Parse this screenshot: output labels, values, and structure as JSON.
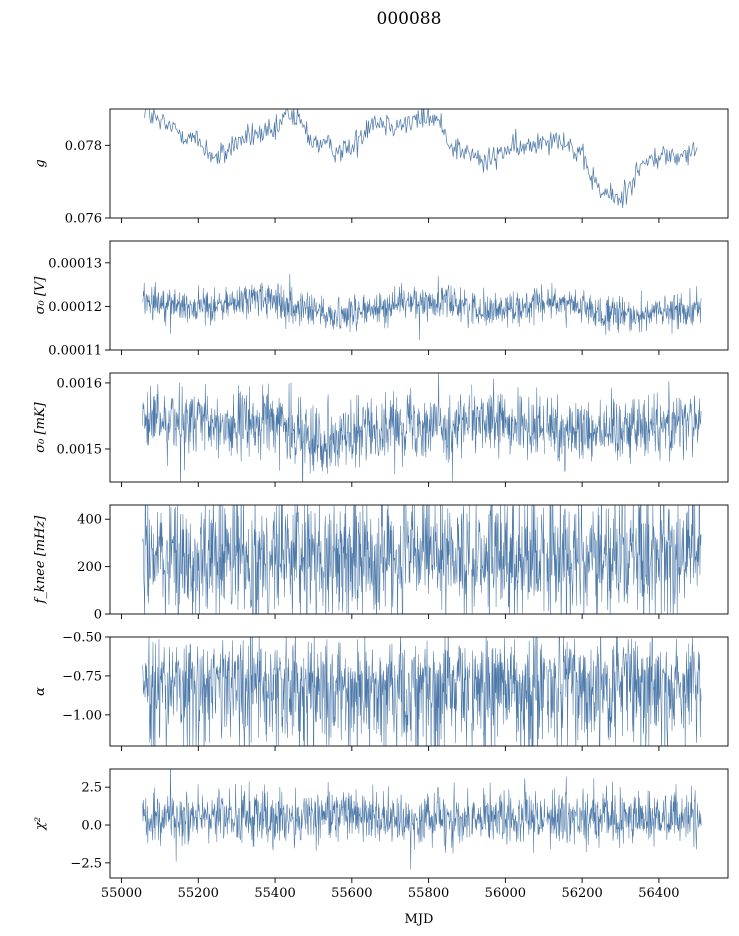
{
  "suptitle": "000088",
  "xlabel": "MJD",
  "colors": {
    "series": "#4c78a8",
    "axes": "#000000",
    "background": "#ffffff"
  },
  "chart_data": [
    {
      "type": "line",
      "ylabel": "g",
      "ylim": [
        0.076,
        0.079
      ],
      "yticks": [
        "0.076",
        "0.078"
      ],
      "ytick_values": [
        0.076,
        0.078
      ],
      "xlim": [
        54970,
        56580
      ],
      "xticks": [
        "55000",
        "55200",
        "55400",
        "55600",
        "55800",
        "56000",
        "56200",
        "56400"
      ],
      "x": [
        55060,
        55100,
        55150,
        55200,
        55250,
        55300,
        55350,
        55400,
        55430,
        55460,
        55500,
        55550,
        55600,
        55650,
        55700,
        55750,
        55800,
        55830,
        55860,
        55900,
        55950,
        56000,
        56050,
        56100,
        56150,
        56200,
        56250,
        56300,
        56350,
        56400,
        56450,
        56500
      ],
      "values": [
        0.079,
        0.0786,
        0.0784,
        0.0781,
        0.0776,
        0.0781,
        0.0783,
        0.0783,
        0.0789,
        0.0787,
        0.0781,
        0.0779,
        0.0779,
        0.0787,
        0.0786,
        0.0786,
        0.0788,
        0.0786,
        0.078,
        0.0778,
        0.0775,
        0.0779,
        0.0779,
        0.0782,
        0.0782,
        0.0776,
        0.0767,
        0.0765,
        0.0774,
        0.0777,
        0.0777,
        0.0778
      ],
      "style": "thin-line"
    },
    {
      "type": "line",
      "ylabel": "σ₀ [V]",
      "ylim": [
        0.00011,
        0.000135
      ],
      "yticks": [
        "0.00011",
        "0.00012",
        "0.00013"
      ],
      "ytick_values": [
        0.00011,
        0.00012,
        0.00013
      ],
      "xlim": [
        54970,
        56580
      ],
      "xticks": [
        "55000",
        "55200",
        "55400",
        "55600",
        "55800",
        "56000",
        "56200",
        "56400"
      ],
      "x_range": [
        55055,
        56510
      ],
      "x": [
        55060,
        55150,
        55250,
        55350,
        55450,
        55550,
        55650,
        55750,
        55850,
        55950,
        56050,
        56150,
        56250,
        56350,
        56450,
        56510
      ],
      "values": [
        0.000122,
        0.00012,
        0.00012,
        0.000122,
        0.00012,
        0.000118,
        0.000119,
        0.000121,
        0.000121,
        0.000119,
        0.00012,
        0.000121,
        0.000118,
        0.000118,
        0.000119,
        0.00012
      ],
      "spread": 2e-06,
      "gaps": [
        55910,
        56105
      ],
      "style": "dense-noise"
    },
    {
      "type": "line",
      "ylabel": "σ₀ [mK]",
      "ylim": [
        0.00145,
        0.001615
      ],
      "yticks": [
        "0.0015",
        "0.0016"
      ],
      "ytick_values": [
        0.0015,
        0.0016
      ],
      "xlim": [
        54970,
        56580
      ],
      "xticks": [
        "55000",
        "55200",
        "55400",
        "55600",
        "55800",
        "56000",
        "56200",
        "56400"
      ],
      "x_range": [
        55055,
        56510
      ],
      "x": [
        55060,
        55150,
        55250,
        55350,
        55420,
        55450,
        55550,
        55650,
        55750,
        55850,
        55950,
        56050,
        56150,
        56250,
        56350,
        56450,
        56510
      ],
      "values": [
        0.001545,
        0.00154,
        0.001535,
        0.00154,
        0.00154,
        0.00152,
        0.001515,
        0.00153,
        0.00154,
        0.001535,
        0.00154,
        0.00153,
        0.00153,
        0.00153,
        0.001535,
        0.001545,
        0.00154
      ],
      "spread": 2.5e-05,
      "gaps": [
        55910,
        56105
      ],
      "style": "dense-noise"
    },
    {
      "type": "line",
      "ylabel": "f_knee [mHz]",
      "ylim": [
        0,
        460
      ],
      "yticks": [
        "0",
        "200",
        "400"
      ],
      "ytick_values": [
        0,
        200,
        400
      ],
      "xlim": [
        54970,
        56580
      ],
      "xticks": [
        "55000",
        "55200",
        "55400",
        "55600",
        "55800",
        "56000",
        "56200",
        "56400"
      ],
      "x_range": [
        55055,
        56510
      ],
      "x": [
        55060,
        56510
      ],
      "values": [
        240,
        240
      ],
      "spread": 130,
      "gaps": [
        55910,
        56105
      ],
      "style": "dense-noise"
    },
    {
      "type": "line",
      "ylabel": "α",
      "ylim": [
        -1.2,
        -0.5
      ],
      "yticks": [
        "−1.00",
        "−0.75",
        "−0.50"
      ],
      "ytick_values": [
        -1.0,
        -0.75,
        -0.5
      ],
      "xlim": [
        54970,
        56580
      ],
      "xticks": [
        "55000",
        "55200",
        "55400",
        "55600",
        "55800",
        "56000",
        "56200",
        "56400"
      ],
      "x_range": [
        55055,
        56510
      ],
      "x": [
        55060,
        56510
      ],
      "values": [
        -0.78,
        -0.78
      ],
      "spread": 0.13,
      "gaps": [
        55910,
        56105
      ],
      "style": "dense-noise-downward"
    },
    {
      "type": "line",
      "ylabel": "χ²",
      "ylim": [
        -3.5,
        3.7
      ],
      "yticks": [
        "−2.5",
        "0.0",
        "2.5"
      ],
      "ytick_values": [
        -2.5,
        0.0,
        2.5
      ],
      "xlim": [
        54970,
        56580
      ],
      "xticks": [
        "55000",
        "55200",
        "55400",
        "55600",
        "55800",
        "56000",
        "56200",
        "56400"
      ],
      "x_range": [
        55055,
        56510
      ],
      "x": [
        55060,
        56510
      ],
      "values": [
        0.5,
        0.5
      ],
      "spread": 0.9,
      "gaps": [
        55910,
        56105
      ],
      "style": "dense-noise"
    }
  ]
}
